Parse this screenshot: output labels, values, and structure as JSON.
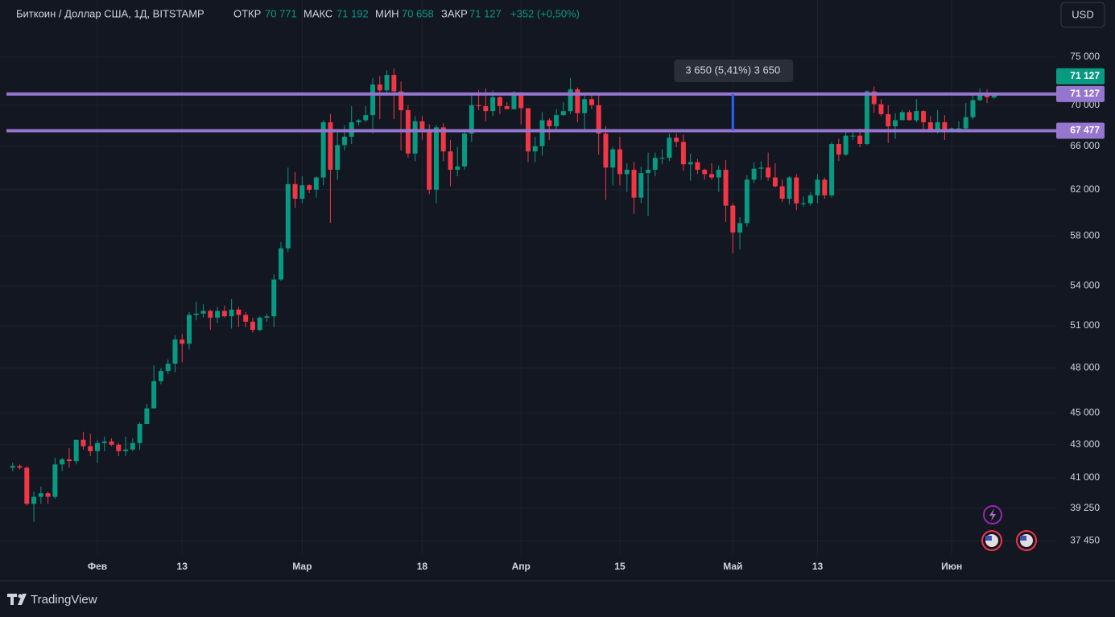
{
  "header": {
    "symbol": "Биткоин / Доллар США, 1Д, BITSTAMP",
    "open_label": "ОТКР",
    "open": "70 771",
    "high_label": "МАКС",
    "high": "71 192",
    "low_label": "МИН",
    "low": "70 658",
    "close_label": "ЗАКР",
    "close": "71 127",
    "change": "+352 (+0,50%)",
    "currency": "USD"
  },
  "footer": {
    "brand": "TradingView"
  },
  "chart_data": {
    "type": "candlestick",
    "log_scale": true,
    "grid": true,
    "up_color": "#089981",
    "down_color": "#f23645",
    "ylim": [
      36700,
      81400
    ],
    "yticks": [
      {
        "value": 75000,
        "label": "75 000"
      },
      {
        "value": 70000,
        "label": "70 000"
      },
      {
        "value": 66000,
        "label": "66 000"
      },
      {
        "value": 62000,
        "label": "62 000"
      },
      {
        "value": 58000,
        "label": "58 000"
      },
      {
        "value": 54000,
        "label": "54 000"
      },
      {
        "value": 51000,
        "label": "51 000"
      },
      {
        "value": 48000,
        "label": "48 000"
      },
      {
        "value": 45000,
        "label": "45 000"
      },
      {
        "value": 43000,
        "label": "43 000"
      },
      {
        "value": 41000,
        "label": "41 000"
      },
      {
        "value": 39250,
        "label": "39 250"
      },
      {
        "value": 37450,
        "label": "37 450"
      }
    ],
    "categories": [
      null,
      null,
      null,
      null,
      null,
      null,
      null,
      null,
      null,
      null,
      null,
      null,
      "Фев",
      null,
      null,
      null,
      null,
      null,
      null,
      null,
      null,
      null,
      null,
      null,
      "13",
      null,
      null,
      null,
      null,
      null,
      null,
      null,
      null,
      null,
      null,
      null,
      null,
      null,
      null,
      null,
      null,
      "Мар",
      null,
      null,
      null,
      null,
      null,
      null,
      null,
      null,
      null,
      null,
      null,
      null,
      null,
      null,
      null,
      null,
      "18",
      null,
      null,
      null,
      null,
      null,
      null,
      null,
      null,
      null,
      null,
      null,
      null,
      null,
      "Апр",
      null,
      null,
      null,
      null,
      null,
      null,
      null,
      null,
      null,
      null,
      null,
      null,
      null,
      "15",
      null,
      null,
      null,
      null,
      null,
      null,
      null,
      null,
      null,
      null,
      null,
      null,
      null,
      null,
      null,
      "Май",
      null,
      null,
      null,
      null,
      null,
      null,
      null,
      null,
      null,
      null,
      null,
      "13",
      null,
      null,
      null,
      null,
      null,
      null,
      null,
      null,
      null,
      null,
      null,
      null,
      null,
      null,
      null,
      null,
      null,
      null,
      "Июн",
      null,
      null,
      null,
      null,
      null,
      null
    ],
    "candles": [
      [
        41600,
        41900,
        41400,
        41700
      ],
      [
        41700,
        41800,
        41500,
        41600
      ],
      [
        41600,
        41700,
        39400,
        39500
      ],
      [
        39500,
        40200,
        38500,
        39900
      ],
      [
        39900,
        40500,
        39500,
        40100
      ],
      [
        40100,
        40200,
        39500,
        39900
      ],
      [
        39900,
        42200,
        39800,
        41800
      ],
      [
        41800,
        42200,
        41400,
        42100
      ],
      [
        42100,
        42800,
        41600,
        42000
      ],
      [
        42000,
        43300,
        41800,
        43300
      ],
      [
        43300,
        43800,
        42700,
        42900
      ],
      [
        42900,
        43700,
        42300,
        42600
      ],
      [
        42600,
        43300,
        41900,
        43100
      ],
      [
        43100,
        43500,
        42600,
        43200
      ],
      [
        43200,
        43400,
        42900,
        43000
      ],
      [
        43000,
        43100,
        42300,
        42600
      ],
      [
        42600,
        43500,
        42300,
        42700
      ],
      [
        42700,
        43400,
        42600,
        43100
      ],
      [
        43100,
        44400,
        42700,
        44300
      ],
      [
        44300,
        45600,
        44300,
        45300
      ],
      [
        45300,
        48200,
        45300,
        47100
      ],
      [
        47100,
        48000,
        46900,
        47800
      ],
      [
        47800,
        48600,
        47600,
        48300
      ],
      [
        48300,
        50300,
        47700,
        50000
      ],
      [
        50000,
        50400,
        48400,
        49700
      ],
      [
        49700,
        52000,
        49300,
        51800
      ],
      [
        51800,
        52800,
        51400,
        51900
      ],
      [
        51900,
        52600,
        51600,
        52100
      ],
      [
        52100,
        52200,
        50700,
        51600
      ],
      [
        51600,
        52400,
        51200,
        52100
      ],
      [
        52100,
        52500,
        51600,
        51700
      ],
      [
        51700,
        53000,
        50800,
        52200
      ],
      [
        52200,
        52400,
        50900,
        51800
      ],
      [
        51800,
        52000,
        50900,
        51300
      ],
      [
        51300,
        51600,
        50500,
        50700
      ],
      [
        50700,
        51700,
        50600,
        51600
      ],
      [
        51600,
        51900,
        51300,
        51700
      ],
      [
        51700,
        54900,
        50900,
        54500
      ],
      [
        54500,
        57500,
        54400,
        57000
      ],
      [
        57000,
        64000,
        56700,
        62500
      ],
      [
        62500,
        63600,
        60400,
        61200
      ],
      [
        61200,
        63200,
        60800,
        62400
      ],
      [
        62400,
        62500,
        61700,
        62000
      ],
      [
        62000,
        63200,
        61300,
        63100
      ],
      [
        63100,
        68500,
        62400,
        68300
      ],
      [
        68300,
        69100,
        59100,
        63800
      ],
      [
        63800,
        67600,
        62900,
        66100
      ],
      [
        66100,
        68000,
        65600,
        66900
      ],
      [
        66900,
        69900,
        66200,
        68300
      ],
      [
        68300,
        68600,
        68000,
        68500
      ],
      [
        68500,
        69900,
        68300,
        69000
      ],
      [
        69000,
        72800,
        67200,
        72100
      ],
      [
        72100,
        73000,
        68600,
        71500
      ],
      [
        71500,
        73600,
        71300,
        73100
      ],
      [
        73100,
        73800,
        68600,
        71400
      ],
      [
        71400,
        72400,
        65600,
        69500
      ],
      [
        69500,
        70000,
        64900,
        65300
      ],
      [
        65300,
        68900,
        64600,
        68400
      ],
      [
        68400,
        68900,
        66600,
        67600
      ],
      [
        67600,
        68100,
        61600,
        62000
      ],
      [
        62000,
        68000,
        60800,
        67800
      ],
      [
        67800,
        68200,
        64600,
        65500
      ],
      [
        65500,
        66600,
        62300,
        63800
      ],
      [
        63800,
        65900,
        63200,
        64100
      ],
      [
        64100,
        67600,
        63800,
        67200
      ],
      [
        67200,
        71100,
        66400,
        70000
      ],
      [
        70000,
        71500,
        69500,
        69900
      ],
      [
        69900,
        71700,
        68400,
        69400
      ],
      [
        69400,
        71500,
        68900,
        70800
      ],
      [
        70800,
        70900,
        69100,
        69900
      ],
      [
        69900,
        70300,
        69600,
        69600
      ],
      [
        69600,
        71400,
        69600,
        71300
      ],
      [
        71300,
        71300,
        68100,
        69700
      ],
      [
        69700,
        69700,
        64500,
        65500
      ],
      [
        65500,
        66900,
        64500,
        66000
      ],
      [
        66000,
        69300,
        65100,
        68500
      ],
      [
        68500,
        68700,
        66600,
        67900
      ],
      [
        67900,
        69600,
        67500,
        69000
      ],
      [
        69000,
        70300,
        68900,
        69400
      ],
      [
        69400,
        72800,
        69100,
        71600
      ],
      [
        71600,
        71800,
        68300,
        69200
      ],
      [
        69200,
        71100,
        67500,
        70600
      ],
      [
        70600,
        71300,
        69600,
        70000
      ],
      [
        70000,
        71200,
        65200,
        67200
      ],
      [
        67200,
        67900,
        61100,
        64000
      ],
      [
        64000,
        65900,
        62400,
        65700
      ],
      [
        65700,
        66900,
        62400,
        63400
      ],
      [
        63400,
        64400,
        61800,
        63800
      ],
      [
        63800,
        64500,
        59900,
        61300
      ],
      [
        61300,
        64100,
        60800,
        63500
      ],
      [
        63500,
        65400,
        59700,
        63800
      ],
      [
        63800,
        65400,
        63200,
        64900
      ],
      [
        64900,
        65700,
        64300,
        64900
      ],
      [
        64900,
        67200,
        64600,
        66800
      ],
      [
        66800,
        67200,
        65900,
        66400
      ],
      [
        66400,
        67100,
        63700,
        64300
      ],
      [
        64300,
        65300,
        62800,
        64500
      ],
      [
        64500,
        64800,
        63400,
        63800
      ],
      [
        63800,
        63900,
        62900,
        63400
      ],
      [
        63400,
        64400,
        62900,
        63100
      ],
      [
        63100,
        64200,
        61800,
        63800
      ],
      [
        63800,
        64700,
        59200,
        60600
      ],
      [
        60600,
        60800,
        56600,
        58300
      ],
      [
        58300,
        59600,
        56900,
        59100
      ],
      [
        59100,
        63300,
        58800,
        62900
      ],
      [
        62900,
        64500,
        62600,
        63900
      ],
      [
        63900,
        64600,
        62900,
        64000
      ],
      [
        64000,
        65400,
        62800,
        63100
      ],
      [
        63100,
        64400,
        62200,
        62300
      ],
      [
        62300,
        62900,
        60900,
        61200
      ],
      [
        61200,
        63200,
        60700,
        63100
      ],
      [
        63100,
        63400,
        60200,
        60800
      ],
      [
        60800,
        61400,
        60500,
        60800
      ],
      [
        60800,
        61800,
        60600,
        61500
      ],
      [
        61500,
        63400,
        60800,
        62900
      ],
      [
        62900,
        63100,
        61200,
        61500
      ],
      [
        61500,
        66400,
        61300,
        66200
      ],
      [
        66200,
        66700,
        64600,
        65200
      ],
      [
        65200,
        67400,
        65100,
        67000
      ],
      [
        67000,
        67400,
        66600,
        67000
      ],
      [
        67000,
        67700,
        65900,
        66200
      ],
      [
        66200,
        71500,
        66100,
        71400
      ],
      [
        71400,
        71900,
        69200,
        70100
      ],
      [
        70100,
        70600,
        68900,
        69100
      ],
      [
        69100,
        70000,
        66300,
        67900
      ],
      [
        67900,
        69200,
        66700,
        68500
      ],
      [
        68500,
        69500,
        68500,
        69300
      ],
      [
        69300,
        69500,
        68500,
        68500
      ],
      [
        68500,
        70600,
        68300,
        69400
      ],
      [
        69400,
        69500,
        67300,
        68300
      ],
      [
        68300,
        68900,
        67300,
        67600
      ],
      [
        67600,
        69500,
        67200,
        68300
      ],
      [
        68300,
        69000,
        66600,
        67500
      ],
      [
        67500,
        67800,
        67400,
        67700
      ],
      [
        67700,
        68400,
        67300,
        67700
      ],
      [
        67700,
        70200,
        67600,
        68800
      ],
      [
        68800,
        71000,
        68600,
        70500
      ],
      [
        70500,
        71700,
        70400,
        71100
      ],
      [
        71100,
        71600,
        70200,
        70800
      ],
      [
        70771,
        71192,
        70658,
        71127
      ]
    ],
    "hlines": [
      {
        "value": 71127,
        "label": "71 127",
        "color": "#9575cd"
      },
      {
        "value": 67477,
        "label": "67 477",
        "color": "#9575cd"
      }
    ],
    "last_price": {
      "value": 71127,
      "label": "71 127",
      "color": "#089981"
    },
    "measure": {
      "from": 67477,
      "to": 71127,
      "label": "3 650 (5,41%) 3 650",
      "color": "#2962ff"
    }
  }
}
